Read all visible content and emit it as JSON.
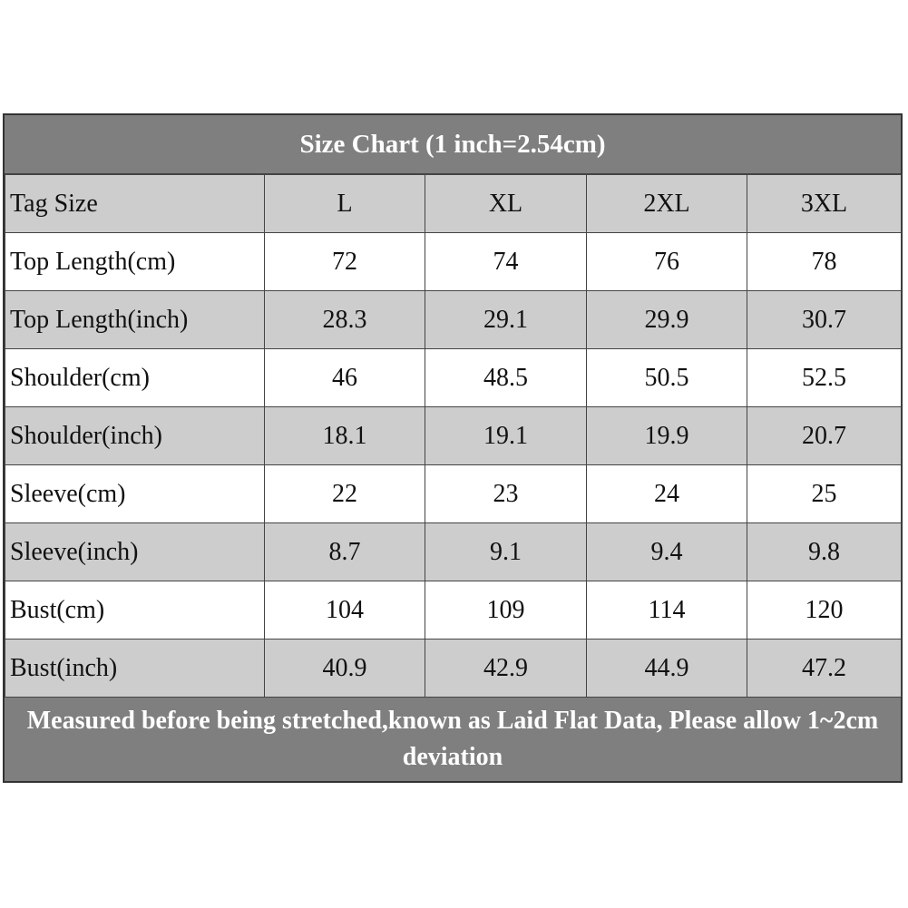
{
  "title": "Size Chart (1 inch=2.54cm)",
  "table": {
    "columns": [
      "Tag Size",
      "L",
      "XL",
      "2XL",
      "3XL"
    ],
    "rows": [
      [
        "Top Length(cm)",
        "72",
        "74",
        "76",
        "78"
      ],
      [
        "Top Length(inch)",
        "28.3",
        "29.1",
        "29.9",
        "30.7"
      ],
      [
        "Shoulder(cm)",
        "46",
        "48.5",
        "50.5",
        "52.5"
      ],
      [
        "Shoulder(inch)",
        "18.1",
        "19.1",
        "19.9",
        "20.7"
      ],
      [
        "Sleeve(cm)",
        "22",
        "23",
        "24",
        "25"
      ],
      [
        "Sleeve(inch)",
        "8.7",
        "9.1",
        "9.4",
        "9.8"
      ],
      [
        "Bust(cm)",
        "104",
        "109",
        "114",
        "120"
      ],
      [
        "Bust(inch)",
        "40.9",
        "42.9",
        "44.9",
        "47.2"
      ]
    ]
  },
  "footer": "Measured before being stretched,known as Laid Flat Data, Please allow 1~2cm deviation"
}
